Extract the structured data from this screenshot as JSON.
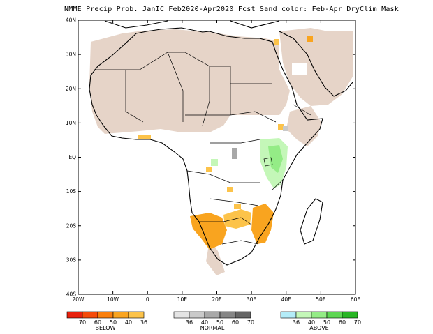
{
  "title": "NMME Precip Prob. JanIC  Feb2020-Apr2020 Fcst  Sand color: Feb-Apr DryClim Mask",
  "axes": {
    "lat_labels": [
      "40N",
      "30N",
      "20N",
      "10N",
      "EQ",
      "10S",
      "20S",
      "30S",
      "40S"
    ],
    "lon_labels": [
      "20W",
      "10W",
      "0",
      "10E",
      "20E",
      "30E",
      "40E",
      "50E",
      "60E"
    ],
    "lon_range": [
      -20,
      60
    ],
    "lat_range": [
      -40,
      40
    ]
  },
  "legend": {
    "below": {
      "title": "BELOW",
      "ticks": [
        "70",
        "60",
        "50",
        "40",
        "36"
      ],
      "colors": [
        "#e8200c",
        "#f54b0a",
        "#fa7f0c",
        "#f9a41f",
        "#fcc34a"
      ]
    },
    "normal": {
      "title": "NORMAL",
      "ticks": [
        "36",
        "40",
        "50",
        "60",
        "70"
      ],
      "colors": [
        "#e4e4e4",
        "#c9c9c9",
        "#a8a8a8",
        "#858585",
        "#646464"
      ]
    },
    "above": {
      "title": "ABOVE",
      "ticks": [
        "36",
        "40",
        "50",
        "60",
        "70"
      ],
      "colors": [
        "#b4ecf8",
        "#c4f7b8",
        "#94ec86",
        "#5ed653",
        "#28b624"
      ]
    }
  },
  "colors": {
    "dry_mask": "#e6d4c8",
    "below_light": "#fcc34a",
    "below_mid": "#f9a41f",
    "normal_grey": "#a8a8a8",
    "above_light": "#c4f7b8",
    "above_mid": "#94ec86"
  }
}
